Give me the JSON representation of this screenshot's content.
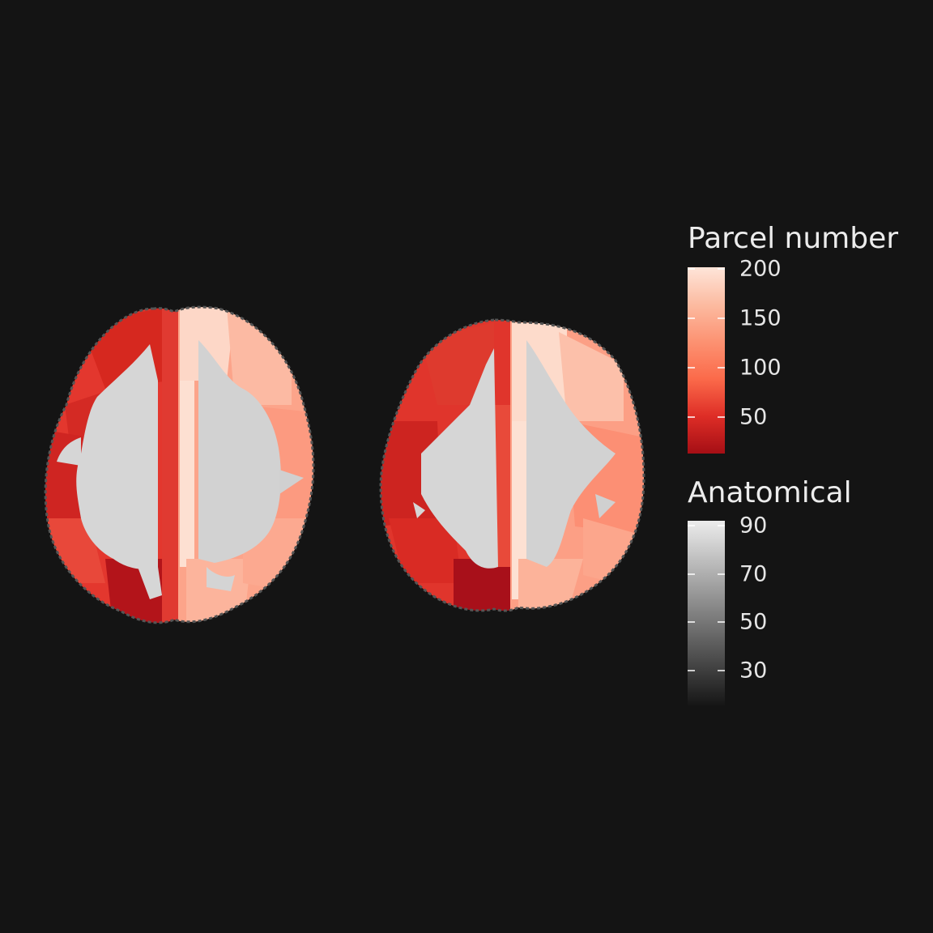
{
  "legend": {
    "parcel": {
      "title": "Parcel number",
      "ticks": [
        {
          "label": "200",
          "value": 200
        },
        {
          "label": "150",
          "value": 150
        },
        {
          "label": "100",
          "value": 100
        },
        {
          "label": "50",
          "value": 50
        }
      ],
      "range": [
        12,
        200
      ],
      "colors": [
        "#fee5d9",
        "#fcbba1",
        "#fc9272",
        "#fb6a4a",
        "#de2d26",
        "#a50f15"
      ]
    },
    "anatomical": {
      "title": "Anatomical",
      "ticks": [
        {
          "label": "90",
          "value": 90
        },
        {
          "label": "70",
          "value": 70
        },
        {
          "label": "50",
          "value": 50
        },
        {
          "label": "30",
          "value": 30
        }
      ],
      "range": [
        13,
        94
      ],
      "colors": [
        "#ececec",
        "#141414"
      ]
    }
  },
  "colors": {
    "background": "#141414",
    "white_matter": "#d6d6d6",
    "edge_voxels": "#555555"
  }
}
